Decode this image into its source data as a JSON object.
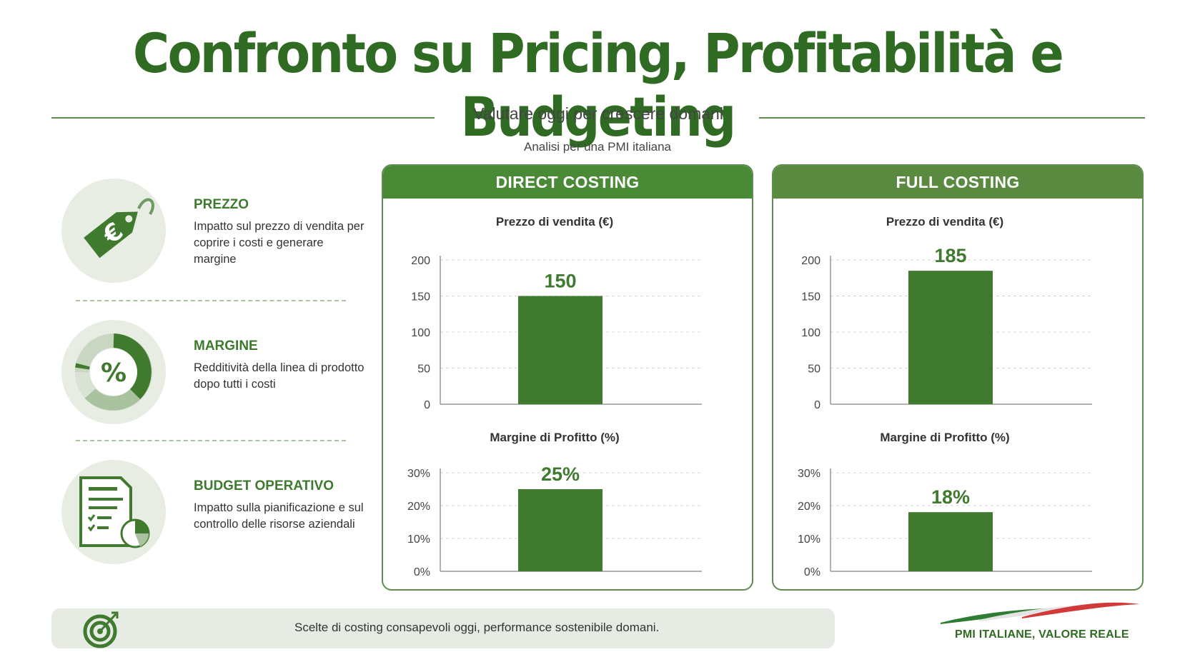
{
  "header": {
    "title": "Confronto su Pricing, Profitabilità e Budgeting",
    "subtitle": "Valutare oggi per crescere domani",
    "analysis_note": "Analisi per una PMI italiana"
  },
  "features": [
    {
      "icon": "price-tag-euro-icon",
      "title": "PREZZO",
      "description": "Impatto sul prezzo di vendita per coprire i costi e generare margine"
    },
    {
      "icon": "percent-donut-icon",
      "title": "MARGINE",
      "description": "Redditività della linea di prodotto dopo tutti i costi"
    },
    {
      "icon": "budget-report-icon",
      "title": "BUDGET OPERATIVO",
      "description": "Impatto sulla pianificazione e sul controllo delle risorse aziendali"
    }
  ],
  "panels": [
    {
      "title": "DIRECT COSTING",
      "header_color": "#4a8a36"
    },
    {
      "title": "FULL COSTING",
      "header_color": "#5a8a3f"
    }
  ],
  "chart_data": [
    {
      "panel": "DIRECT COSTING",
      "type": "bar",
      "title": "Prezzo di vendita (€)",
      "values": [
        150
      ],
      "value_labels": [
        "150"
      ],
      "yticks": [
        "0",
        "50",
        "100",
        "150",
        "200"
      ],
      "ylim": [
        0,
        200
      ],
      "grid": true
    },
    {
      "panel": "DIRECT COSTING",
      "type": "bar",
      "title": "Margine di Profitto (%)",
      "values": [
        25
      ],
      "value_labels": [
        "25%"
      ],
      "yticks": [
        "0%",
        "10%",
        "20%",
        "30%"
      ],
      "ylim": [
        0,
        30
      ],
      "grid": true
    },
    {
      "panel": "FULL COSTING",
      "type": "bar",
      "title": "Prezzo di vendita (€)",
      "values": [
        185
      ],
      "value_labels": [
        "185"
      ],
      "yticks": [
        "0",
        "50",
        "100",
        "150",
        "200"
      ],
      "ylim": [
        0,
        200
      ],
      "grid": true
    },
    {
      "panel": "FULL COSTING",
      "type": "bar",
      "title": "Margine di Profitto (%)",
      "values": [
        18
      ],
      "value_labels": [
        "18%"
      ],
      "yticks": [
        "0%",
        "10%",
        "20%",
        "30%"
      ],
      "ylim": [
        0,
        30
      ],
      "grid": true
    }
  ],
  "colors": {
    "primary_green": "#2f6b22",
    "bar_green": "#3f7a2e",
    "light_green": "#e7ede3"
  },
  "footer": {
    "text": "Scelte di costing consapevoli oggi, performance sostenibile domani.",
    "icon": "target-icon",
    "brand": "PMI ITALIANE, VALORE REALE",
    "brand_icon": "italian-flag-swoosh-icon"
  }
}
